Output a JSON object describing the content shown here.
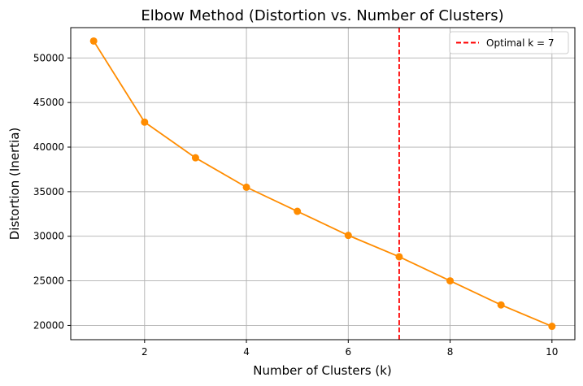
{
  "chart_data": {
    "type": "line",
    "title": "Elbow Method (Distortion vs. Number of Clusters)",
    "xlabel": "Number of Clusters (k)",
    "ylabel": "Distortion (Inertia)",
    "xlim": [
      0.55,
      10.45
    ],
    "ylim": [
      18400,
      53400
    ],
    "xticks": [
      2,
      4,
      6,
      8,
      10
    ],
    "yticks": [
      20000,
      25000,
      30000,
      35000,
      40000,
      45000,
      50000
    ],
    "grid": true,
    "series": [
      {
        "x": [
          1,
          2,
          3,
          4,
          5,
          6,
          7,
          8,
          9,
          10
        ],
        "values": [
          51900,
          42800,
          38800,
          35500,
          32800,
          30100,
          27700,
          25000,
          22300,
          19900
        ],
        "color": "#ff8c00",
        "marker": "circle"
      }
    ],
    "annotations": [
      {
        "type": "vline",
        "x": 7,
        "color": "#ff0000",
        "style": "dashed",
        "label": "Optimal k = 7"
      }
    ],
    "legend": {
      "position": "top-right",
      "entries": [
        "Optimal k = 7"
      ]
    }
  }
}
